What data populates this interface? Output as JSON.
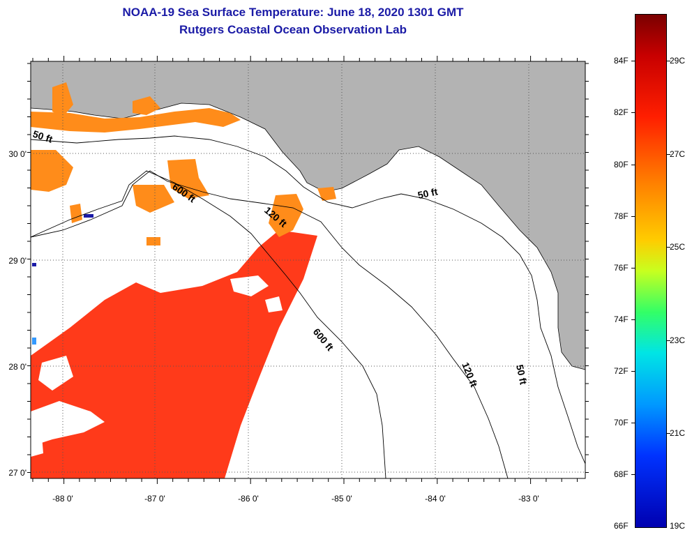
{
  "title": {
    "line1": "NOAA-19 Sea Surface Temperature:  June 18, 2020 1301 GMT",
    "line2": "Rutgers Coastal Ocean Observation Lab"
  },
  "map": {
    "lon_labels": [
      "-88 0'",
      "-87 0'",
      "-86 0'",
      "-85 0'",
      "-84 0'",
      "-83 0'"
    ],
    "lat_labels": [
      "30 0'",
      "29 0'",
      "28 0'",
      "27 0'"
    ],
    "contour_labels": {
      "c50_west": "50 ft",
      "c600_north": "600 ft",
      "c120_north": "120 ft",
      "c50_east": "50 ft",
      "c600_south": "600 ft",
      "c120_south": "120 ft",
      "c50_south": "50 ft"
    },
    "colors": {
      "land": "#b3b3b3",
      "warm": "#ff3a1a",
      "cool_shelf": "#ff8c1a",
      "no_data": "#ffffff"
    }
  },
  "colorbar": {
    "fahrenheit": [
      "84F",
      "82F",
      "80F",
      "78F",
      "76F",
      "74F",
      "72F",
      "70F",
      "68F",
      "66F"
    ],
    "celsius": [
      "29C",
      "27C",
      "25C",
      "23C",
      "21C",
      "19C"
    ]
  }
}
